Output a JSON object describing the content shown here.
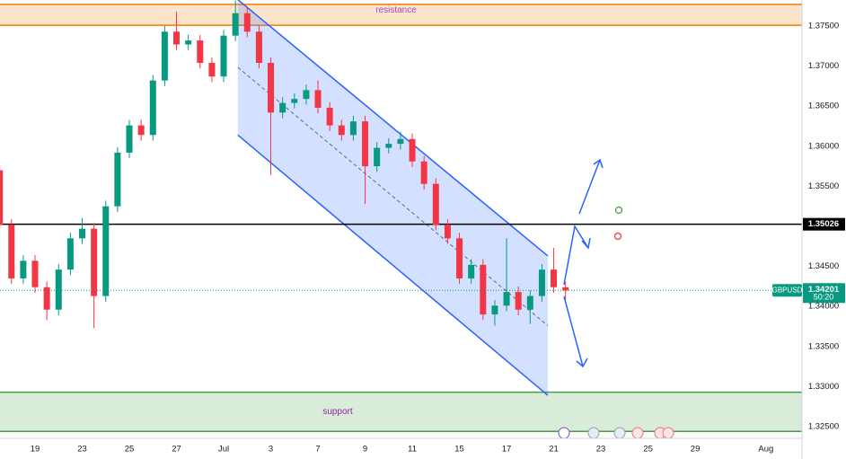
{
  "chart_data": {
    "type": "candlestick",
    "x": [
      -1.5,
      -1,
      -0.5,
      0,
      0.5,
      1,
      1.5,
      2,
      2.5,
      3,
      3.5,
      4,
      4.5,
      5,
      5.5,
      6,
      6.5,
      7,
      7.5,
      8,
      8.5,
      9,
      9.5,
      10,
      10.5,
      11,
      11.5,
      12,
      12.5,
      13,
      13.5,
      14,
      14.5,
      15,
      15.5,
      16,
      16.5,
      17,
      17.5,
      18,
      18.5,
      19,
      19.5,
      20,
      20.5,
      21,
      21.5,
      22,
      22.5
    ],
    "open": [
      1.357,
      1.3502,
      1.3435,
      1.3457,
      1.3424,
      1.3396,
      1.3446,
      1.3485,
      1.3497,
      1.3413,
      1.3525,
      1.3592,
      1.3626,
      1.3614,
      1.3682,
      1.3743,
      1.3727,
      1.3732,
      1.3704,
      1.3687,
      1.3738,
      1.3766,
      1.3743,
      1.3704,
      1.3642,
      1.3654,
      1.3659,
      1.367,
      1.3648,
      1.3626,
      1.3614,
      1.3631,
      1.3575,
      1.3598,
      1.3603,
      1.3609,
      1.3581,
      1.3553,
      1.3502,
      1.3485,
      1.3435,
      1.3452,
      1.339,
      1.3401,
      1.3418,
      1.3396,
      1.3413,
      1.3446,
      1.3424
    ],
    "high": [
      1.3577,
      1.3509,
      1.3464,
      1.3464,
      1.3431,
      1.3453,
      1.3492,
      1.351,
      1.3504,
      1.3532,
      1.3599,
      1.3633,
      1.3633,
      1.3689,
      1.375,
      1.3768,
      1.3739,
      1.3739,
      1.3711,
      1.3745,
      1.3782,
      1.3773,
      1.375,
      1.3711,
      1.3661,
      1.3666,
      1.3677,
      1.3682,
      1.3655,
      1.3633,
      1.3638,
      1.3638,
      1.3605,
      1.361,
      1.3618,
      1.3616,
      1.3588,
      1.356,
      1.3509,
      1.3492,
      1.3459,
      1.3459,
      1.3408,
      1.3485,
      1.3425,
      1.342,
      1.3453,
      1.3473,
      1.3431
    ],
    "low": [
      1.3495,
      1.3428,
      1.3428,
      1.3417,
      1.3383,
      1.3389,
      1.3439,
      1.3478,
      1.3373,
      1.3406,
      1.3518,
      1.3585,
      1.3607,
      1.3607,
      1.3675,
      1.372,
      1.372,
      1.3697,
      1.368,
      1.368,
      1.3731,
      1.3736,
      1.3697,
      1.3564,
      1.3635,
      1.3647,
      1.3652,
      1.3641,
      1.3619,
      1.3607,
      1.3607,
      1.3528,
      1.3568,
      1.3591,
      1.3596,
      1.3574,
      1.3546,
      1.3495,
      1.3478,
      1.3428,
      1.3428,
      1.3383,
      1.3376,
      1.3394,
      1.3389,
      1.3378,
      1.3406,
      1.3417,
      1.3408
    ],
    "close": [
      1.3502,
      1.3435,
      1.3457,
      1.3424,
      1.3396,
      1.3446,
      1.3485,
      1.3497,
      1.3413,
      1.3525,
      1.3592,
      1.3626,
      1.3614,
      1.3682,
      1.3743,
      1.3727,
      1.3732,
      1.3704,
      1.3687,
      1.3738,
      1.3766,
      1.3743,
      1.3704,
      1.3642,
      1.3654,
      1.3659,
      1.367,
      1.3648,
      1.3626,
      1.3614,
      1.3631,
      1.3575,
      1.3598,
      1.3603,
      1.3609,
      1.3581,
      1.3553,
      1.3502,
      1.3485,
      1.3435,
      1.3452,
      1.339,
      1.3401,
      1.3418,
      1.3396,
      1.3413,
      1.3446,
      1.3424,
      1.342
    ],
    "up_color": "#089981",
    "down_color": "#f23645",
    "xlim": [
      -1.486,
      32.53
    ],
    "xticks": [
      {
        "value": 0,
        "label": "19"
      },
      {
        "value": 2,
        "label": "23"
      },
      {
        "value": 4,
        "label": "25"
      },
      {
        "value": 6,
        "label": "27"
      },
      {
        "value": 8,
        "label": "Jul"
      },
      {
        "value": 10,
        "label": "3"
      },
      {
        "value": 12,
        "label": "7"
      },
      {
        "value": 14,
        "label": "9"
      },
      {
        "value": 16,
        "label": "11"
      },
      {
        "value": 18,
        "label": "15"
      },
      {
        "value": 20,
        "label": "17"
      },
      {
        "value": 22,
        "label": "21"
      },
      {
        "value": 24,
        "label": "23"
      },
      {
        "value": 26,
        "label": "25"
      },
      {
        "value": 28,
        "label": "29"
      },
      {
        "value": 31,
        "label": "Aug"
      }
    ],
    "ylim": [
      1.32365,
      1.37825
    ],
    "yticks": [
      {
        "value": 1.325,
        "label": "1.32500"
      },
      {
        "value": 1.33,
        "label": "1.33000"
      },
      {
        "value": 1.335,
        "label": "1.33500"
      },
      {
        "value": 1.34,
        "label": "1.34000"
      },
      {
        "value": 1.345,
        "label": "1.34500"
      },
      {
        "value": 1.35,
        "label": "1.35000"
      },
      {
        "value": 1.355,
        "label": "1.35500"
      },
      {
        "value": 1.36,
        "label": "1.36000"
      },
      {
        "value": 1.365,
        "label": "1.36500"
      },
      {
        "value": 1.37,
        "label": "1.37000"
      },
      {
        "value": 1.375,
        "label": "1.37500"
      }
    ],
    "grid": true,
    "zones": [
      {
        "label": "resistance",
        "range": [
          1.3751,
          1.3777
        ],
        "color": "#f57c00"
      },
      {
        "label": "support",
        "range": [
          1.3244,
          1.3293
        ],
        "color": "#43a047"
      }
    ],
    "level": {
      "value": 1.35026,
      "label": "1.35026"
    },
    "last_price": {
      "value": 1.34201,
      "label": "1.34201"
    },
    "symbol": "GBPUSD",
    "countdown": "50:20",
    "channel": {
      "x": [
        8.6,
        21.75
      ],
      "upper": [
        1.3783,
        1.3463
      ],
      "lower": [
        1.3614,
        1.3289
      ],
      "color": "#2962ff"
    }
  }
}
